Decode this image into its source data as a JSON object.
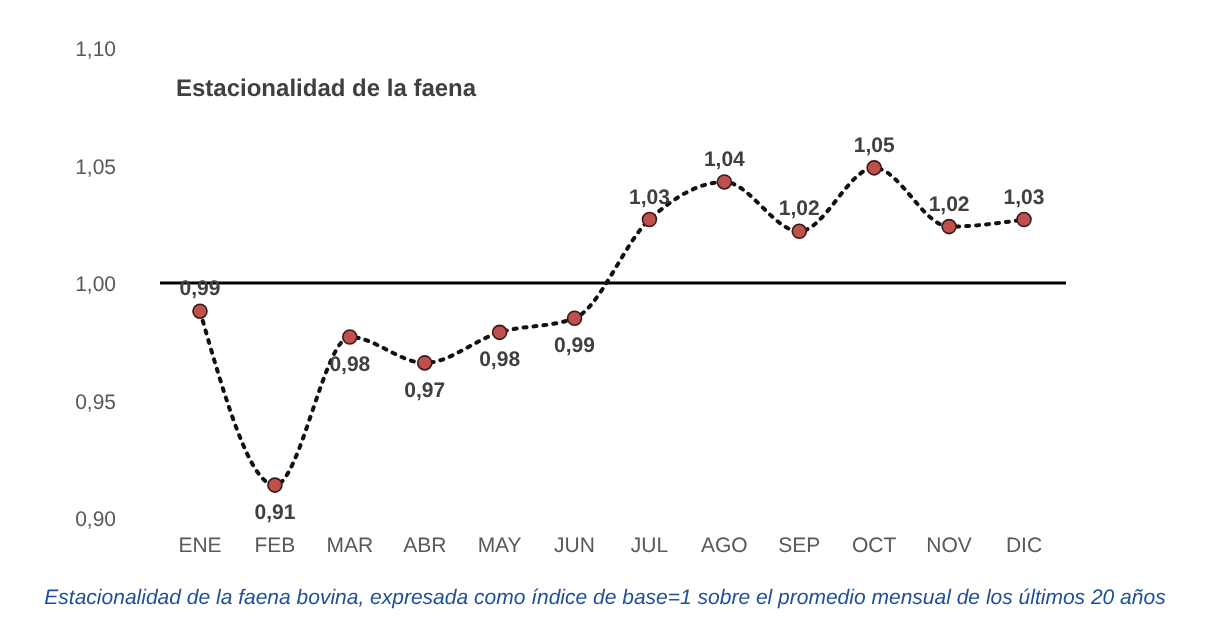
{
  "chart_data": {
    "type": "line",
    "title": "Estacionalidad de la faena",
    "categories": [
      "ENE",
      "FEB",
      "MAR",
      "ABR",
      "MAY",
      "JUN",
      "JUL",
      "AGO",
      "SEP",
      "OCT",
      "NOV",
      "DIC"
    ],
    "series": [
      {
        "color": "#c0504d",
        "values": [
          0.988,
          0.914,
          0.977,
          0.966,
          0.979,
          0.985,
          1.027,
          1.043,
          1.022,
          1.049,
          1.024,
          1.027
        ],
        "value_labels": [
          "0,99",
          "0,91",
          "0,98",
          "0,97",
          "0,98",
          "0,99",
          "1,03",
          "1,04",
          "1,02",
          "1,05",
          "1,02",
          "1,03"
        ]
      }
    ],
    "ylim": [
      0.9,
      1.1
    ],
    "yticks": [
      {
        "value": 0.9,
        "label": "0,90"
      },
      {
        "value": 0.95,
        "label": "0,95"
      },
      {
        "value": 1.0,
        "label": "1,00"
      },
      {
        "value": 1.05,
        "label": "1,05"
      },
      {
        "value": 1.1,
        "label": "1,10"
      }
    ],
    "ref_lines": [
      {
        "axis": "y",
        "value": 1.0,
        "color": "#000000"
      }
    ],
    "marker": "circle",
    "line_style": "dotted",
    "annotations": [
      "Estacionalidad de la faena bovina, expresada como índice de base=1 sobre el promedio mensual de los últimos 20 años"
    ]
  }
}
